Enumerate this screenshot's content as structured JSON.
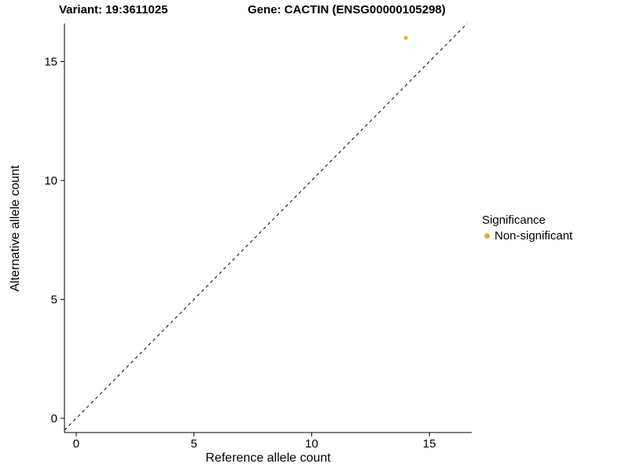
{
  "chart_data": {
    "type": "scatter",
    "title_left": "Variant: 19:3611025",
    "title_right": "Gene: CACTIN (ENSG00000105298)",
    "xlabel": "Reference allele count",
    "ylabel": "Alternative allele count",
    "xlim": [
      -0.5,
      16.8
    ],
    "ylim": [
      -0.6,
      16.6
    ],
    "xticks": [
      0,
      5,
      10,
      15
    ],
    "yticks": [
      0,
      5,
      10,
      15
    ],
    "grid": false,
    "series": [
      {
        "name": "Non-significant",
        "color": "#F8A23E",
        "points": [
          {
            "x": 14,
            "y": 16
          }
        ]
      }
    ],
    "reference_line": {
      "type": "identity",
      "style": "dashed",
      "color": "#000000"
    },
    "legend": {
      "title": "Significance",
      "position": "right",
      "entries": [
        {
          "label": "Non-significant",
          "color": "#F8A23E"
        }
      ]
    }
  }
}
